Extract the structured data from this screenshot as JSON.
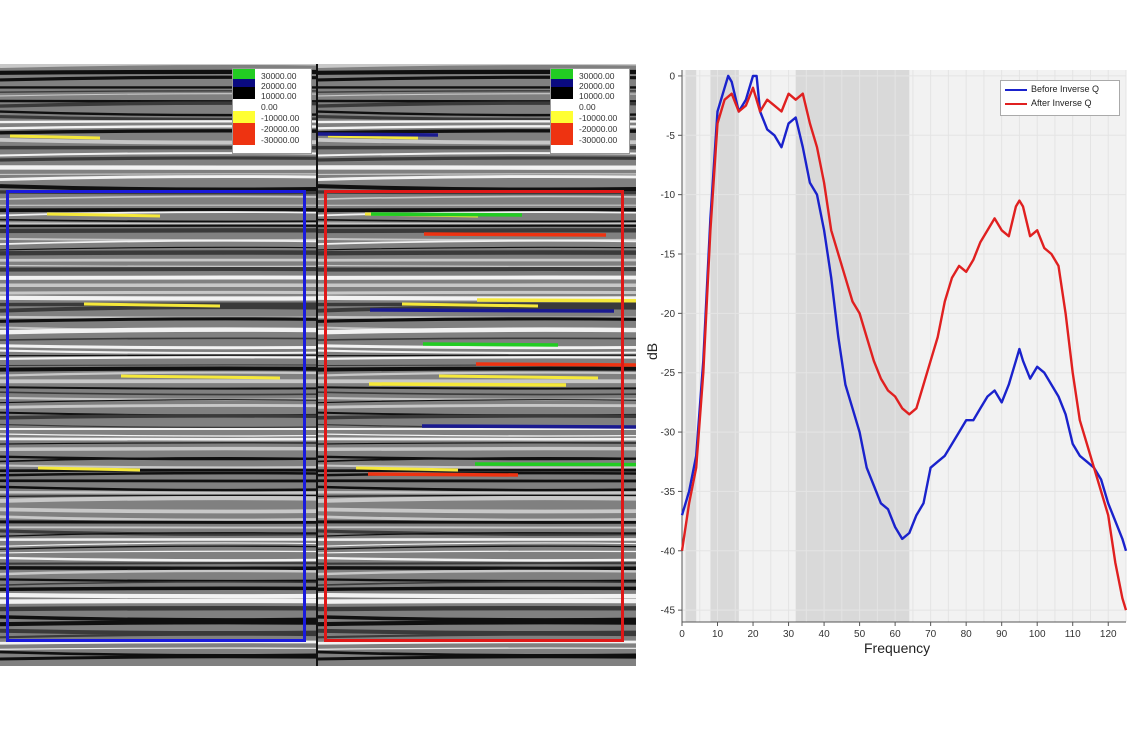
{
  "seismic": {
    "left": {
      "colorbar_labels": [
        "30000.00",
        "20000.00",
        "10000.00",
        "0.00",
        "-10000.00",
        "-20000.00",
        "-30000.00"
      ],
      "box_color": "#1a1adc"
    },
    "right": {
      "colorbar_labels": [
        "30000.00",
        "20000.00",
        "10000.00",
        "0.00",
        "-10000.00",
        "-20000.00",
        "-30000.00"
      ],
      "box_color": "#e01818"
    },
    "colorbar_colors": [
      "#22cc22",
      "#0a0a80",
      "#000000",
      "#ffffff",
      "#ffff33",
      "#ee3311"
    ]
  },
  "chart_data": {
    "type": "line",
    "xlabel": "Frequency",
    "ylabel": "dB",
    "xlim": [
      0,
      125
    ],
    "ylim": [
      -46,
      0.5
    ],
    "xticks": [
      0,
      10,
      20,
      30,
      40,
      50,
      60,
      70,
      80,
      90,
      100,
      110,
      120
    ],
    "yticks": [
      0,
      -5,
      -10,
      -15,
      -20,
      -25,
      -30,
      -35,
      -40,
      -45
    ],
    "shaded_bands": [
      [
        1,
        4
      ],
      [
        8,
        16
      ],
      [
        32,
        64
      ]
    ],
    "legend_position": "top-right",
    "series": [
      {
        "name": "Before Inverse Q",
        "color": "#1a22cc",
        "x": [
          0,
          2,
          4,
          6,
          8,
          10,
          12,
          13,
          14,
          16,
          18,
          20,
          21,
          22,
          24,
          26,
          28,
          30,
          32,
          34,
          36,
          38,
          40,
          42,
          44,
          46,
          48,
          50,
          52,
          54,
          56,
          58,
          60,
          62,
          64,
          66,
          68,
          70,
          72,
          74,
          76,
          78,
          80,
          82,
          84,
          86,
          88,
          90,
          92,
          94,
          95,
          96,
          98,
          100,
          102,
          104,
          106,
          108,
          110,
          112,
          114,
          116,
          118,
          120,
          122,
          124,
          125
        ],
        "y": [
          -37,
          -35,
          -32,
          -24,
          -12,
          -3,
          -1,
          0,
          -0.5,
          -3,
          -2,
          0,
          0,
          -3,
          -4.5,
          -5,
          -6,
          -4,
          -3.5,
          -6,
          -9,
          -10,
          -13,
          -17,
          -22,
          -26,
          -28,
          -30,
          -33,
          -34.5,
          -36,
          -36.5,
          -38,
          -39,
          -38.5,
          -37,
          -36,
          -33,
          -32.5,
          -32,
          -31,
          -30,
          -29,
          -29,
          -28,
          -27,
          -26.5,
          -27.5,
          -26,
          -24,
          -23,
          -24,
          -25.5,
          -24.5,
          -25,
          -26,
          -27,
          -28.5,
          -31,
          -32,
          -32.5,
          -33,
          -34,
          -36,
          -37.5,
          -39,
          -40
        ]
      },
      {
        "name": "After Inverse Q",
        "color": "#e02020",
        "x": [
          0,
          2,
          4,
          6,
          8,
          10,
          12,
          14,
          16,
          18,
          20,
          22,
          24,
          26,
          28,
          30,
          32,
          34,
          36,
          38,
          40,
          42,
          44,
          46,
          48,
          50,
          52,
          54,
          56,
          58,
          60,
          62,
          64,
          66,
          68,
          70,
          72,
          74,
          76,
          78,
          80,
          82,
          84,
          86,
          88,
          90,
          92,
          94,
          95,
          96,
          98,
          100,
          102,
          104,
          106,
          108,
          110,
          112,
          114,
          116,
          118,
          120,
          122,
          124,
          125
        ],
        "y": [
          -40,
          -36,
          -33,
          -25,
          -13,
          -4,
          -2,
          -1.5,
          -3,
          -2.5,
          -1,
          -3,
          -2,
          -2.5,
          -3,
          -1.5,
          -2,
          -1.5,
          -4,
          -6,
          -9,
          -13,
          -15,
          -17,
          -19,
          -20,
          -22,
          -24,
          -25.5,
          -26.5,
          -27,
          -28,
          -28.5,
          -28,
          -26,
          -24,
          -22,
          -19,
          -17,
          -16,
          -16.5,
          -15.5,
          -14,
          -13,
          -12,
          -13,
          -13.5,
          -11,
          -10.5,
          -11,
          -13.5,
          -13,
          -14.5,
          -15,
          -16,
          -20,
          -25,
          -29,
          -31,
          -33,
          -35,
          -37,
          -41,
          -44,
          -45
        ]
      }
    ]
  }
}
